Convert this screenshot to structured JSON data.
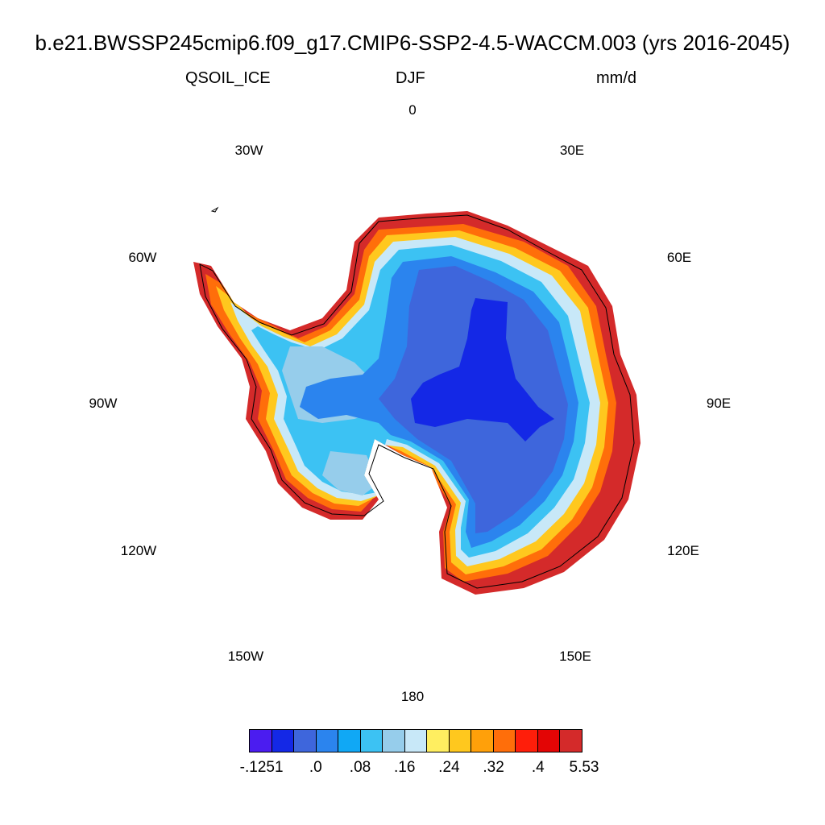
{
  "title": "b.e21.BWSSP245cmip6.f09_g17.CMIP6-SSP2-4.5-WACCM.003 (yrs 2016-2045)",
  "variable": "QSOIL_ICE",
  "season": "DJF",
  "units": "mm/d",
  "longitude_labels": [
    "0",
    "30E",
    "60E",
    "90E",
    "120E",
    "150E",
    "180",
    "150W",
    "120W",
    "90W",
    "60W",
    "30W"
  ],
  "colorbar": {
    "colors": [
      "#4b1cf0",
      "#1428e6",
      "#3e66dc",
      "#2b84ee",
      "#10a8f5",
      "#3cc2f3",
      "#96cdeb",
      "#c8e8f8",
      "#ffee60",
      "#ffc81e",
      "#ffa00a",
      "#ff6e0a",
      "#ff1e0a",
      "#e30505",
      "#d42a2a"
    ],
    "labels": [
      "-.1251",
      ".0",
      ".08",
      ".16",
      ".24",
      ".32",
      ".4",
      "5.53"
    ]
  }
}
